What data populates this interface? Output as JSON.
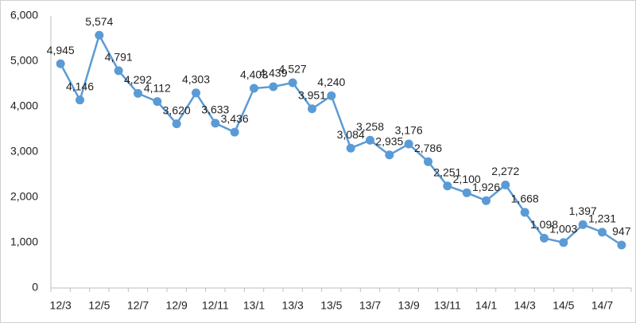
{
  "chart_data": {
    "type": "line",
    "categories": [
      "12/3",
      null,
      "12/5",
      null,
      "12/7",
      null,
      "12/9",
      null,
      "12/11",
      null,
      "13/1",
      null,
      "13/3",
      null,
      "13/5",
      null,
      "13/7",
      null,
      "13/9",
      null,
      "13/11",
      null,
      "14/1",
      null,
      "14/3",
      null,
      "14/5",
      null,
      "14/7",
      null
    ],
    "values": [
      4945,
      4146,
      5574,
      4791,
      4292,
      4112,
      3620,
      4303,
      3633,
      3436,
      4403,
      4439,
      4527,
      3951,
      4240,
      3084,
      3258,
      2935,
      3176,
      2786,
      2251,
      2100,
      1926,
      2272,
      1668,
      1098,
      1003,
      1397,
      1231,
      947
    ],
    "value_labels": [
      "4,945",
      "4,146",
      "5,574",
      "4,791",
      "4,292",
      "4,112",
      "3,620",
      "4,303",
      "3,633",
      "3,436",
      "4,403",
      "4,439",
      "4,527",
      "3,951",
      "4,240",
      "3,084",
      "3,258",
      "2,935",
      "3,176",
      "2,786",
      "2,251",
      "2,100",
      "1,926",
      "2,272",
      "1,668",
      "1,098",
      "1,003",
      "1,397",
      "1,231",
      "947"
    ],
    "color": "#5b9bd5",
    "ylim": [
      0,
      6000
    ],
    "yticks": [
      0,
      {
        "value": 1000,
        "label": "1,000"
      },
      {
        "value": 2000,
        "label": "2,000"
      },
      {
        "value": 3000,
        "label": "3,000"
      },
      {
        "value": 4000,
        "label": "4,000"
      },
      {
        "value": 5000,
        "label": "5,000"
      },
      {
        "value": 6000,
        "label": "6,000"
      }
    ],
    "grid": false
  }
}
